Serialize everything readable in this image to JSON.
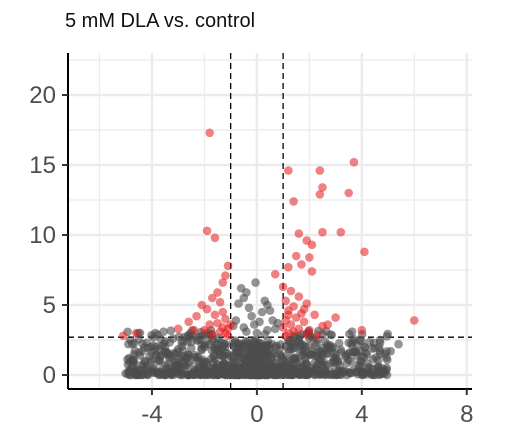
{
  "chart_data": {
    "type": "scatter",
    "title": "5 mM DLA vs. control",
    "xlabel": "",
    "ylabel": "",
    "xlim": [
      -7.2,
      8.2
    ],
    "ylim": [
      -1,
      23
    ],
    "x_ticks": [
      "-4",
      "0",
      "4",
      "8"
    ],
    "y_ticks": [
      "0",
      "5",
      "10",
      "15",
      "20"
    ],
    "thresholds": {
      "vertical": [
        -1,
        1
      ],
      "horizontal": 2.7
    },
    "grid": true,
    "colors": {
      "significant": "#e41a1c",
      "not_significant": "#4d4d4d"
    },
    "significant_points": [
      [
        -1.8,
        17.3
      ],
      [
        -1.9,
        10.3
      ],
      [
        -1.6,
        9.8
      ],
      [
        -1.1,
        7.8
      ],
      [
        -1.2,
        7.1
      ],
      [
        -1.3,
        6.6
      ],
      [
        -1.5,
        5.9
      ],
      [
        -1.7,
        5.5
      ],
      [
        -1.4,
        5.2
      ],
      [
        -2.1,
        5.0
      ],
      [
        -1.9,
        4.7
      ],
      [
        -1.3,
        4.5
      ],
      [
        -1.6,
        4.3
      ],
      [
        -2.3,
        4.2
      ],
      [
        -1.2,
        4.0
      ],
      [
        -2.6,
        3.8
      ],
      [
        -1.5,
        3.7
      ],
      [
        -1.8,
        3.6
      ],
      [
        -1.3,
        3.4
      ],
      [
        -1.1,
        3.3
      ],
      [
        -2.0,
        3.2
      ],
      [
        -1.4,
        3.1
      ],
      [
        -1.2,
        3.0
      ],
      [
        -1.7,
        2.9
      ],
      [
        -3.0,
        3.3
      ],
      [
        -5.1,
        2.8
      ],
      [
        -4.6,
        3.0
      ],
      [
        -2.4,
        3.2
      ],
      [
        -1.0,
        3.6
      ],
      [
        -1.1,
        2.8
      ],
      [
        1.2,
        14.6
      ],
      [
        1.4,
        12.4
      ],
      [
        1.6,
        10.1
      ],
      [
        1.9,
        9.6
      ],
      [
        1.5,
        8.5
      ],
      [
        1.7,
        7.9
      ],
      [
        2.1,
        7.4
      ],
      [
        1.2,
        7.7
      ],
      [
        0.7,
        7.2
      ],
      [
        1.0,
        6.3
      ],
      [
        1.3,
        6.0
      ],
      [
        1.6,
        5.6
      ],
      [
        1.1,
        5.3
      ],
      [
        1.9,
        5.1
      ],
      [
        1.4,
        4.9
      ],
      [
        1.2,
        4.6
      ],
      [
        1.7,
        4.4
      ],
      [
        2.2,
        4.3
      ],
      [
        1.5,
        4.1
      ],
      [
        1.1,
        3.9
      ],
      [
        1.8,
        3.8
      ],
      [
        1.3,
        3.6
      ],
      [
        2.5,
        3.5
      ],
      [
        1.0,
        3.4
      ],
      [
        1.6,
        3.3
      ],
      [
        2.0,
        3.2
      ],
      [
        1.4,
        3.1
      ],
      [
        1.2,
        3.0
      ],
      [
        1.9,
        2.9
      ],
      [
        2.3,
        2.85
      ],
      [
        1.1,
        2.8
      ],
      [
        2.7,
        3.6
      ],
      [
        3.0,
        4.1
      ],
      [
        1.2,
        4.3
      ],
      [
        1.8,
        4.7
      ],
      [
        2.4,
        14.6
      ],
      [
        2.5,
        13.4
      ],
      [
        2.4,
        12.9
      ],
      [
        2.5,
        10.2
      ],
      [
        2.1,
        9.3
      ],
      [
        2.0,
        8.4
      ],
      [
        3.7,
        15.2
      ],
      [
        3.5,
        13.0
      ],
      [
        3.2,
        10.2
      ],
      [
        4.1,
        8.8
      ],
      [
        4.0,
        3.2
      ],
      [
        6.0,
        3.9
      ]
    ],
    "nonsignificant_points": [
      [
        -0.05,
        6.6
      ],
      [
        0.3,
        5.3
      ],
      [
        -0.6,
        6.2
      ],
      [
        -0.4,
        5.9
      ],
      [
        -0.5,
        5.5
      ],
      [
        0.4,
        5.0
      ],
      [
        -0.3,
        4.8
      ],
      [
        0.2,
        4.5
      ],
      [
        -0.2,
        4.2
      ],
      [
        0.5,
        4.6
      ],
      [
        -0.7,
        5.1
      ],
      [
        0.6,
        3.9
      ],
      [
        -0.1,
        3.6
      ],
      [
        0.1,
        3.8
      ],
      [
        -0.5,
        3.4
      ],
      [
        0.4,
        3.2
      ],
      [
        -0.8,
        3.9
      ],
      [
        0.7,
        3.3
      ],
      [
        0.0,
        3.0
      ],
      [
        -0.4,
        3.1
      ],
      [
        0.3,
        2.9
      ],
      [
        -0.9,
        3.5
      ],
      [
        0.8,
        3.7
      ],
      [
        -4.2,
        2.3
      ],
      [
        -3.9,
        1.8
      ],
      [
        -3.5,
        2.0
      ],
      [
        -3.1,
        1.5
      ],
      [
        -4.9,
        2.2
      ],
      [
        -2.8,
        2.4
      ],
      [
        -2.5,
        1.9
      ],
      [
        -4.5,
        1.6
      ],
      [
        -3.2,
        2.6
      ],
      [
        -3.7,
        1.3
      ],
      [
        -2.2,
        2.5
      ],
      [
        -2.0,
        2.1
      ],
      [
        -2.7,
        1.2
      ],
      [
        -1.7,
        2.4
      ],
      [
        -1.5,
        1.8
      ],
      [
        -1.2,
        2.2
      ],
      [
        2.6,
        2.4
      ],
      [
        2.9,
        2.0
      ],
      [
        3.2,
        1.8
      ],
      [
        3.5,
        2.3
      ],
      [
        3.8,
        1.6
      ],
      [
        4.1,
        2.0
      ],
      [
        4.4,
        1.9
      ],
      [
        4.7,
        2.3
      ],
      [
        5.1,
        1.7
      ],
      [
        5.4,
        2.2
      ],
      [
        2.3,
        1.6
      ],
      [
        2.0,
        2.6
      ],
      [
        3.4,
        1.4
      ],
      [
        4.0,
        1.3
      ],
      [
        4.7,
        1.5
      ],
      [
        1.7,
        2.2
      ],
      [
        1.4,
        1.9
      ],
      [
        1.2,
        2.5
      ]
    ]
  }
}
